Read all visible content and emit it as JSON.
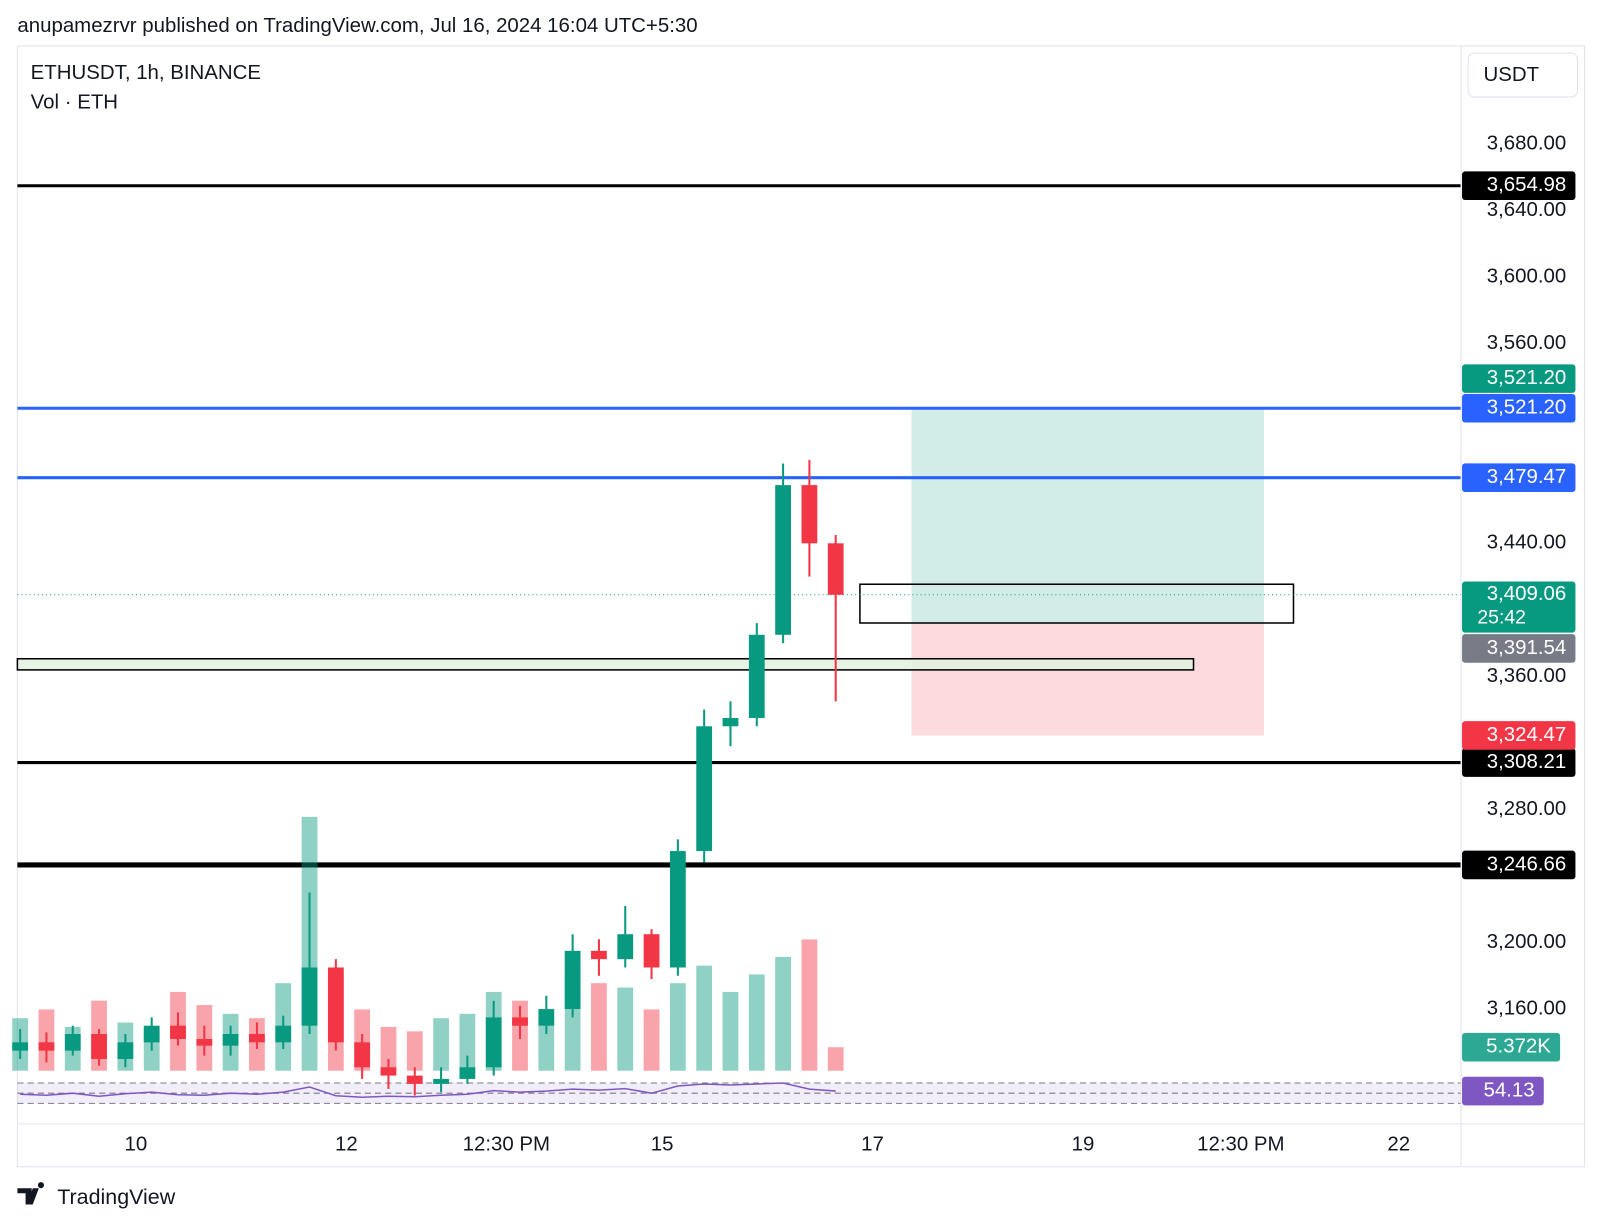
{
  "header_text": "anupamezrvr published on TradingView.com, Jul 16, 2024 16:04 UTC+5:30",
  "footer_text": "TradingView",
  "chart_data": {
    "type": "candlestick",
    "title": "ETHUSDT, 1h, BINANCE",
    "volume_title": "Vol · ETH",
    "currency": "USDT",
    "up_color": "#089981",
    "down_color": "#f23645",
    "x": [
      8.9,
      9.15,
      9.4,
      9.65,
      9.9,
      10.15,
      10.4,
      10.65,
      10.9,
      11.15,
      11.4,
      11.65,
      11.9,
      12.15,
      12.4,
      12.65,
      12.9,
      13.15,
      13.4,
      13.65,
      13.9,
      14.15,
      14.4,
      14.65,
      14.9,
      15.15,
      15.4,
      15.65,
      15.9,
      16.15,
      16.4,
      16.65
    ],
    "open": [
      3135,
      3140,
      3135,
      3145,
      3130,
      3140,
      3150,
      3142,
      3138,
      3145,
      3140,
      3150,
      3185,
      3140,
      3125,
      3120,
      3115,
      3118,
      3125,
      3155,
      3150,
      3160,
      3195,
      3190,
      3205,
      3185,
      3255,
      3330,
      3335,
      3385,
      3475,
      3440
    ],
    "high": [
      3148,
      3146,
      3150,
      3148,
      3145,
      3155,
      3158,
      3150,
      3150,
      3152,
      3156,
      3230,
      3190,
      3145,
      3130,
      3125,
      3125,
      3132,
      3165,
      3162,
      3168,
      3205,
      3202,
      3222,
      3208,
      3262,
      3340,
      3345,
      3392,
      3488,
      3490,
      3445
    ],
    "low": [
      3130,
      3128,
      3132,
      3126,
      3125,
      3135,
      3138,
      3132,
      3132,
      3136,
      3136,
      3145,
      3135,
      3118,
      3112,
      3108,
      3110,
      3115,
      3120,
      3142,
      3145,
      3155,
      3180,
      3185,
      3178,
      3180,
      3248,
      3318,
      3330,
      3380,
      3420,
      3345
    ],
    "close": [
      3140,
      3135,
      3145,
      3130,
      3140,
      3150,
      3142,
      3138,
      3145,
      3140,
      3150,
      3185,
      3140,
      3125,
      3120,
      3115,
      3118,
      3125,
      3155,
      3150,
      3160,
      3195,
      3190,
      3205,
      3185,
      3255,
      3330,
      3335,
      3385,
      3475,
      3440,
      3409.06
    ],
    "volume": [
      12,
      14,
      10,
      16,
      11,
      9,
      18,
      15,
      13,
      12,
      20,
      58,
      22,
      14,
      10,
      9,
      12,
      13,
      18,
      16,
      12,
      22,
      20,
      19,
      14,
      20,
      24,
      18,
      22,
      26,
      30,
      5.372
    ],
    "volume_last_label": "5.372K",
    "volume_ylim": [
      0,
      60
    ],
    "rsi": [
      48,
      46,
      50,
      44,
      49,
      52,
      47,
      46,
      50,
      48,
      52,
      62,
      45,
      42,
      44,
      43,
      46,
      48,
      55,
      52,
      54,
      58,
      56,
      59,
      50,
      64,
      68,
      66,
      68,
      70,
      58,
      54.13
    ],
    "rsi_last_label": "54.13",
    "rsi_color": "#7e57c2",
    "rsi_ylim": [
      10,
      90
    ],
    "rsi_bands": [
      30,
      50,
      70
    ],
    "xlim": [
      8.874,
      22.592
    ],
    "xticks": [
      10,
      12,
      {
        "value": 13.52,
        "label": "12:30 PM"
      },
      15,
      17,
      19,
      {
        "value": 20.5,
        "label": "12:30 PM"
      },
      22
    ],
    "ylim": [
      3091,
      3739
    ],
    "yticks": [
      {
        "value": 3680,
        "label": "3,680.00"
      },
      {
        "value": 3640,
        "label": "3,640.00"
      },
      {
        "value": 3600,
        "label": "3,600.00"
      },
      {
        "value": 3560,
        "label": "3,560.00"
      },
      {
        "value": 3440,
        "label": "3,440.00"
      },
      {
        "value": 3360,
        "label": "3,360.00"
      },
      {
        "value": 3280,
        "label": "3,280.00"
      },
      {
        "value": 3200,
        "label": "3,200.00"
      },
      {
        "value": 3160,
        "label": "3,160.00"
      }
    ],
    "levels": [
      {
        "value": 3654.98,
        "label": "3,654.98",
        "color": "#000000",
        "line_width": 3
      },
      {
        "value": 3521.2,
        "label": "3,521.20",
        "color": "#2962ff",
        "line_width": 3
      },
      {
        "value": 3479.47,
        "label": "3,479.47",
        "color": "#2962ff",
        "line_width": 3
      },
      {
        "value": 3308.21,
        "label": "3,308.21",
        "color": "#000000",
        "line_width": 3
      },
      {
        "value": 3246.66,
        "label": "3,246.66",
        "color": "#000000",
        "line_width": 5
      }
    ],
    "position": {
      "x_start": 17.37,
      "x_end": 20.72,
      "target": 3521.2,
      "target_label": "3,521.20",
      "entry": 3391.54,
      "entry_label": "3,391.54",
      "stop": 3324.47,
      "stop_label": "3,324.47"
    },
    "zones": [
      {
        "x_start": 8.874,
        "x_end": 20.05,
        "top": 3370.6,
        "bottom": 3363.9,
        "fill": "#e3f2e1"
      },
      {
        "x_start": 16.88,
        "x_end": 21.0,
        "top": 3415.4,
        "bottom": 3392.1,
        "fill": "none"
      }
    ],
    "last_price": 3409.06,
    "last_price_label": "3,409.06",
    "countdown": "25:42"
  }
}
